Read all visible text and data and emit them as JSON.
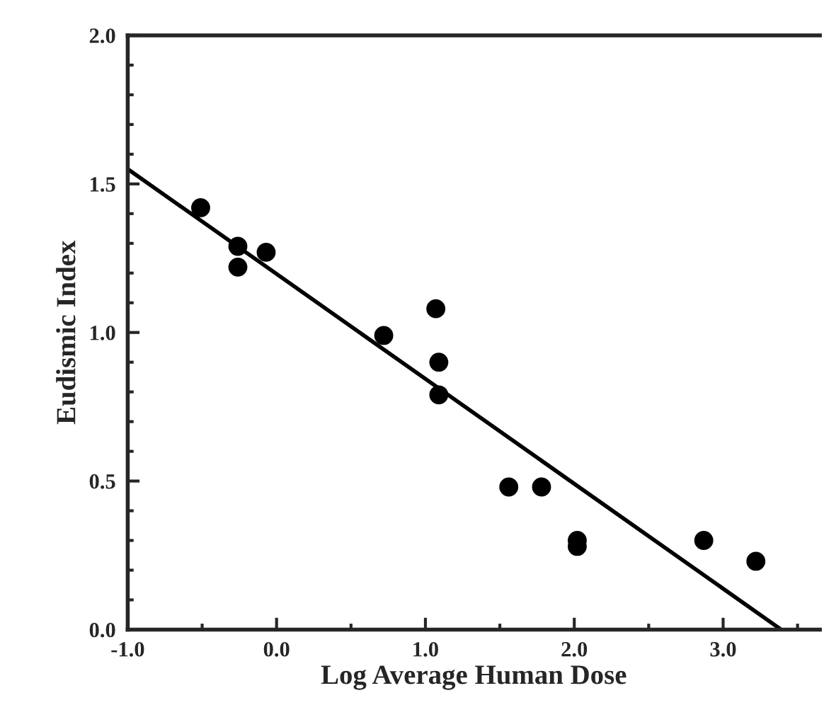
{
  "chart_data": {
    "type": "scatter",
    "xlabel": "Log Average Human Dose",
    "ylabel": "Eudismic Index",
    "xlim": [
      -1.0,
      3.65
    ],
    "ylim": [
      0.0,
      2.0
    ],
    "xticks": [
      {
        "value": -1.0,
        "label": "-1.0"
      },
      {
        "value": 0.0,
        "label": "0.0"
      },
      {
        "value": 1.0,
        "label": "1.0"
      },
      {
        "value": 2.0,
        "label": "2.0"
      },
      {
        "value": 3.0,
        "label": "3.0"
      }
    ],
    "yticks": [
      {
        "value": 0.0,
        "label": "0.0"
      },
      {
        "value": 0.5,
        "label": "0.5"
      },
      {
        "value": 1.0,
        "label": "1.0"
      },
      {
        "value": 1.5,
        "label": "1.5"
      },
      {
        "value": 2.0,
        "label": "2.0"
      }
    ],
    "grid": false,
    "legend": false,
    "series": [
      {
        "marker": "circle",
        "color": "#000000",
        "x": [
          -0.51,
          -0.26,
          -0.26,
          -0.07,
          0.72,
          1.07,
          1.09,
          1.09,
          1.56,
          1.78,
          2.02,
          2.02,
          2.87,
          3.22
        ],
        "values": [
          1.42,
          1.29,
          1.22,
          1.27,
          0.99,
          1.08,
          0.9,
          0.79,
          0.48,
          0.48,
          0.3,
          0.28,
          0.3,
          0.23
        ]
      },
      {
        "type": "line",
        "marker": "none",
        "color": "#000000",
        "line_style": "solid",
        "x": [
          -1.0,
          3.39
        ],
        "values": [
          1.55,
          0.0
        ]
      }
    ]
  }
}
